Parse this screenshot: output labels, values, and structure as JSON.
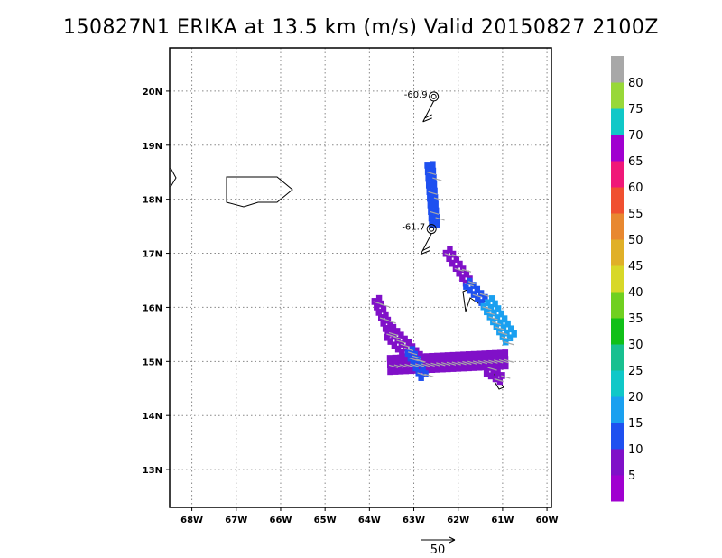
{
  "title": "150827N1 ERIKA at 13.5 km (m/s) Valid 20150827 2100Z",
  "map": {
    "lon_range": [
      -68.5,
      -59.9
    ],
    "lat_range": [
      12.3,
      20.8
    ],
    "lon_ticks": [
      {
        "value": -68,
        "label": "68W"
      },
      {
        "value": -67,
        "label": "67W"
      },
      {
        "value": -66,
        "label": "66W"
      },
      {
        "value": -65,
        "label": "65W"
      },
      {
        "value": -64,
        "label": "64W"
      },
      {
        "value": -63,
        "label": "63W"
      },
      {
        "value": -62,
        "label": "62W"
      },
      {
        "value": -61,
        "label": "61W"
      },
      {
        "value": -60,
        "label": "60W"
      }
    ],
    "lat_ticks": [
      {
        "value": 13,
        "label": "13N"
      },
      {
        "value": 14,
        "label": "14N"
      },
      {
        "value": 15,
        "label": "15N"
      },
      {
        "value": 16,
        "label": "16N"
      },
      {
        "value": 17,
        "label": "17N"
      },
      {
        "value": 18,
        "label": "18N"
      },
      {
        "value": 19,
        "label": "19N"
      },
      {
        "value": 20,
        "label": "20N"
      }
    ],
    "grid": true
  },
  "colorbar": {
    "labels": [
      "5",
      "10",
      "15",
      "20",
      "25",
      "30",
      "35",
      "40",
      "45",
      "50",
      "55",
      "60",
      "65",
      "70",
      "75",
      "80"
    ],
    "colors": [
      "#a000d0",
      "#8010c8",
      "#1e50f0",
      "#1aa0f0",
      "#10c8c8",
      "#18c090",
      "#10c018",
      "#70d020",
      "#d8d828",
      "#e0b028",
      "#e88830",
      "#f05030",
      "#f01878",
      "#a000d0",
      "#10c8c8",
      "#98d838",
      "#a8a8a8"
    ]
  },
  "storm_markers": [
    {
      "lon": -62.55,
      "lat": 19.9,
      "label": "-60.9"
    },
    {
      "lon": -62.6,
      "lat": 17.45,
      "label": "-61.7"
    }
  ],
  "reference_vector": {
    "label": "50"
  },
  "chart_data": {
    "type": "heatmap",
    "title": "150827N1 ERIKA at 13.5 km (m/s) Valid 20150827 2100Z",
    "xlim": [
      -68.5,
      -59.9
    ],
    "ylim": [
      12.3,
      20.8
    ],
    "cell_size_deg": 0.12,
    "segments": [
      {
        "from": [
          -62.7,
          18.7
        ],
        "to": [
          -62.6,
          17.6
        ],
        "value": 10,
        "width": 0.25
      },
      {
        "from": [
          -62.3,
          17.1
        ],
        "to": [
          -61.85,
          16.55
        ],
        "value": 5,
        "width": 0.22
      },
      {
        "from": [
          -61.85,
          16.5
        ],
        "to": [
          -61.5,
          16.2
        ],
        "value": 10,
        "width": 0.25
      },
      {
        "from": [
          -61.4,
          16.15
        ],
        "to": [
          -60.9,
          15.5
        ],
        "value": 15,
        "width": 0.3
      },
      {
        "from": [
          -63.9,
          16.2
        ],
        "to": [
          -63.6,
          15.6
        ],
        "value": 5,
        "width": 0.25
      },
      {
        "from": [
          -63.6,
          15.6
        ],
        "to": [
          -63.0,
          15.1
        ],
        "value": 5,
        "width": 0.35
      },
      {
        "from": [
          -63.6,
          15.0
        ],
        "to": [
          -61.0,
          15.1
        ],
        "value": 5,
        "width": 0.3
      },
      {
        "from": [
          -61.4,
          14.9
        ],
        "to": [
          -61.1,
          14.75
        ],
        "value": 5,
        "width": 0.2
      },
      {
        "from": [
          -63.15,
          15.25
        ],
        "to": [
          -62.85,
          14.8
        ],
        "value": 10,
        "width": 0.22
      }
    ]
  }
}
